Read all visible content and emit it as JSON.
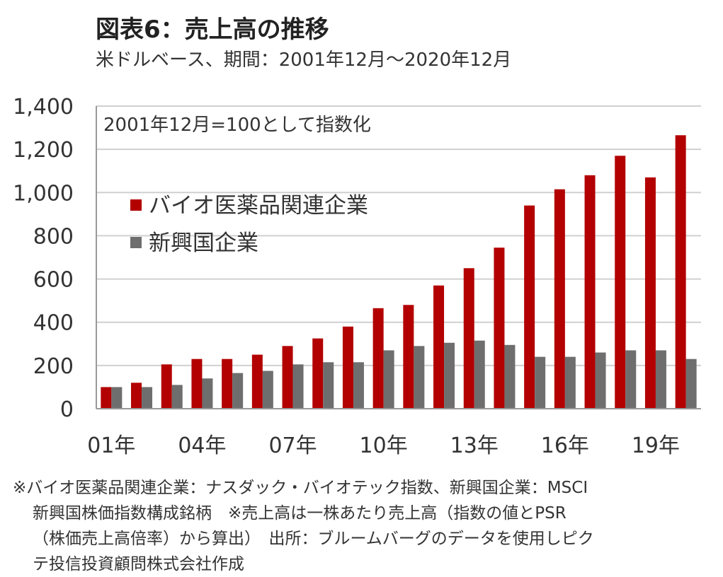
{
  "title": "図表6：売上高の推移",
  "subtitle": "米ドルベース、期間：2001年12月～2020年12月",
  "colors": {
    "bio": "#B30000",
    "emerging": "#6E6E6E",
    "grid": "#d0d0d0",
    "axis": "#999999"
  },
  "chart_data": {
    "type": "bar",
    "annotation": "2001年12月=100として指数化",
    "ylim": [
      0,
      1400
    ],
    "yticks": [
      "0",
      "200",
      "400",
      "600",
      "800",
      "1,000",
      "1,200",
      "1,400"
    ],
    "ytick_values": [
      0,
      200,
      400,
      600,
      800,
      1000,
      1200,
      1400
    ],
    "xtick_labels": [
      "01年",
      "04年",
      "07年",
      "10年",
      "13年",
      "16年",
      "19年"
    ],
    "xtick_index": [
      0,
      3,
      6,
      9,
      12,
      15,
      18
    ],
    "categories": [
      "2001",
      "2002",
      "2003",
      "2004",
      "2005",
      "2006",
      "2007",
      "2008",
      "2009",
      "2010",
      "2011",
      "2012",
      "2013",
      "2014",
      "2015",
      "2016",
      "2017",
      "2018",
      "2019",
      "2020"
    ],
    "series": [
      {
        "name": "バイオ医薬品関連企業",
        "color": "#B30000",
        "values": [
          100,
          120,
          205,
          230,
          230,
          250,
          290,
          325,
          380,
          465,
          480,
          570,
          650,
          745,
          940,
          1015,
          1080,
          1170,
          1070,
          1265
        ]
      },
      {
        "name": "新興国企業",
        "color": "#6E6E6E",
        "values": [
          100,
          100,
          110,
          140,
          165,
          175,
          205,
          215,
          215,
          270,
          290,
          305,
          315,
          295,
          240,
          240,
          260,
          270,
          270,
          230
        ]
      }
    ],
    "grid": true,
    "legend": "upper-left"
  },
  "note": {
    "line1": "※バイオ医薬品関連企業：ナスダック・バイオテック指数、新興国企業：MSCI",
    "line2": "新興国株価指数構成銘柄　※売上高は一株あたり売上高（指数の値とPSR",
    "line3": "（株価売上高倍率）から算出）　出所：ブルームバーグのデータを使用しピク",
    "line4": "テ投信投資顧問株式会社作成"
  }
}
